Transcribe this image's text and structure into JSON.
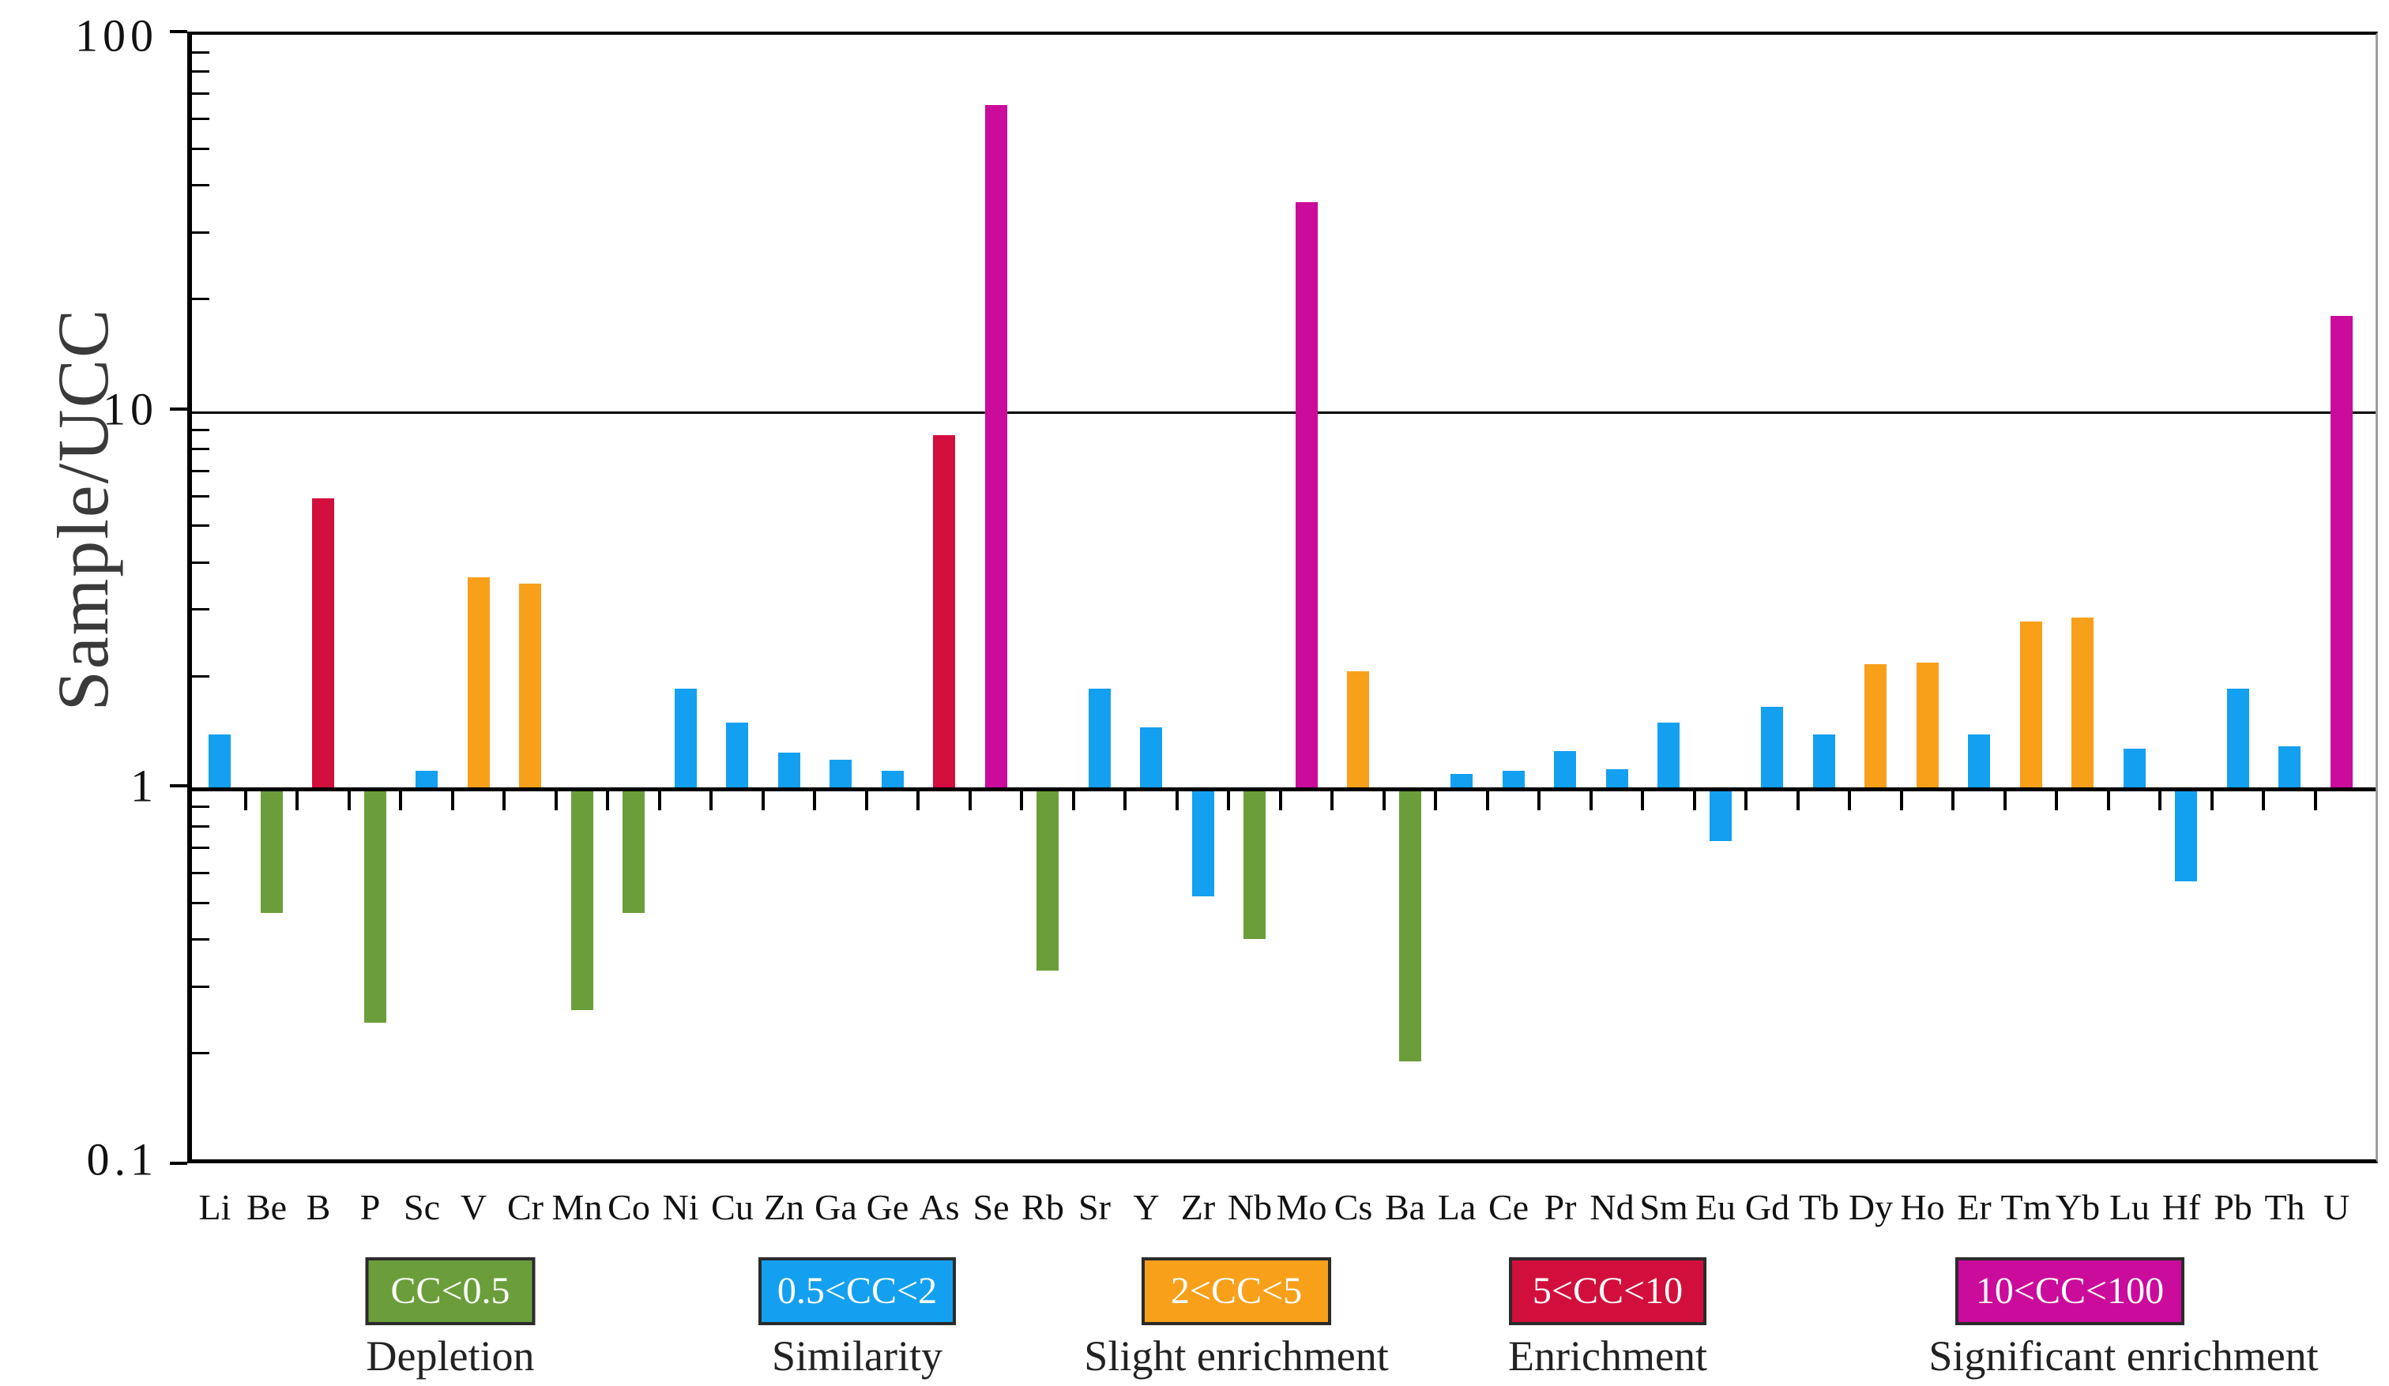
{
  "chart_data": {
    "type": "bar",
    "title": "",
    "xlabel": "",
    "ylabel": "Sample/UCC",
    "y_scale": "log",
    "ylim": [
      0.1,
      100
    ],
    "grid": "reference line at y=10 and baseline at y=1",
    "legend_position": "bottom",
    "y_ticks": [
      {
        "label": "100",
        "value": 100
      },
      {
        "label": "10",
        "value": 10
      },
      {
        "label": "1",
        "value": 1
      },
      {
        "label": "0.1",
        "value": 0.1
      }
    ],
    "reference_line_value": 10,
    "baseline_value": 1,
    "categories": [
      "Li",
      "Be",
      "B",
      "P",
      "Sc",
      "V",
      "Cr",
      "Mn",
      "Co",
      "Ni",
      "Cu",
      "Zn",
      "Ga",
      "Ge",
      "As",
      "Se",
      "Rb",
      "Sr",
      "Y",
      "Zr",
      "Nb",
      "Mo",
      "Cs",
      "Ba",
      "La",
      "Ce",
      "Pr",
      "Nd",
      "Sm",
      "Eu",
      "Gd",
      "Tb",
      "Dy",
      "Ho",
      "Er",
      "Tm",
      "Yb",
      "Lu",
      "Hf",
      "Pb",
      "Th",
      "U"
    ],
    "values": [
      1.4,
      0.47,
      5.9,
      0.24,
      1.12,
      3.65,
      3.5,
      0.26,
      0.47,
      1.85,
      1.5,
      1.25,
      1.2,
      1.12,
      8.7,
      65,
      0.33,
      1.85,
      1.46,
      0.52,
      0.4,
      36,
      2.05,
      0.19,
      1.1,
      1.12,
      1.26,
      1.13,
      1.5,
      0.73,
      1.65,
      1.4,
      2.15,
      2.17,
      1.4,
      2.78,
      2.85,
      1.28,
      0.57,
      1.85,
      1.3,
      18
    ],
    "color_rule": {
      "thresholds": [
        0.5,
        2,
        5,
        10
      ],
      "colors": [
        "#6B9E3A",
        "#14A0F0",
        "#F9A01B",
        "#D20F3C",
        "#CB0B9B"
      ]
    },
    "legend": [
      {
        "range": "CC<0.5",
        "label": "Depletion",
        "color": "#6B9E3A",
        "text_color": "#ffffff"
      },
      {
        "range": "0.5<CC<2",
        "label": "Similarity",
        "color": "#14A0F0",
        "text_color": "#ffffff"
      },
      {
        "range": "2<CC<5",
        "label": "Slight enrichment",
        "color": "#F9A01B",
        "text_color": "#ffffff"
      },
      {
        "range": "5<CC<10",
        "label": "Enrichment",
        "color": "#D20F3C",
        "text_color": "#ffffff"
      },
      {
        "range": "10<CC<100",
        "label": "Significant enrichment",
        "color": "#CB0B9B",
        "text_color": "#ffffff"
      }
    ]
  }
}
